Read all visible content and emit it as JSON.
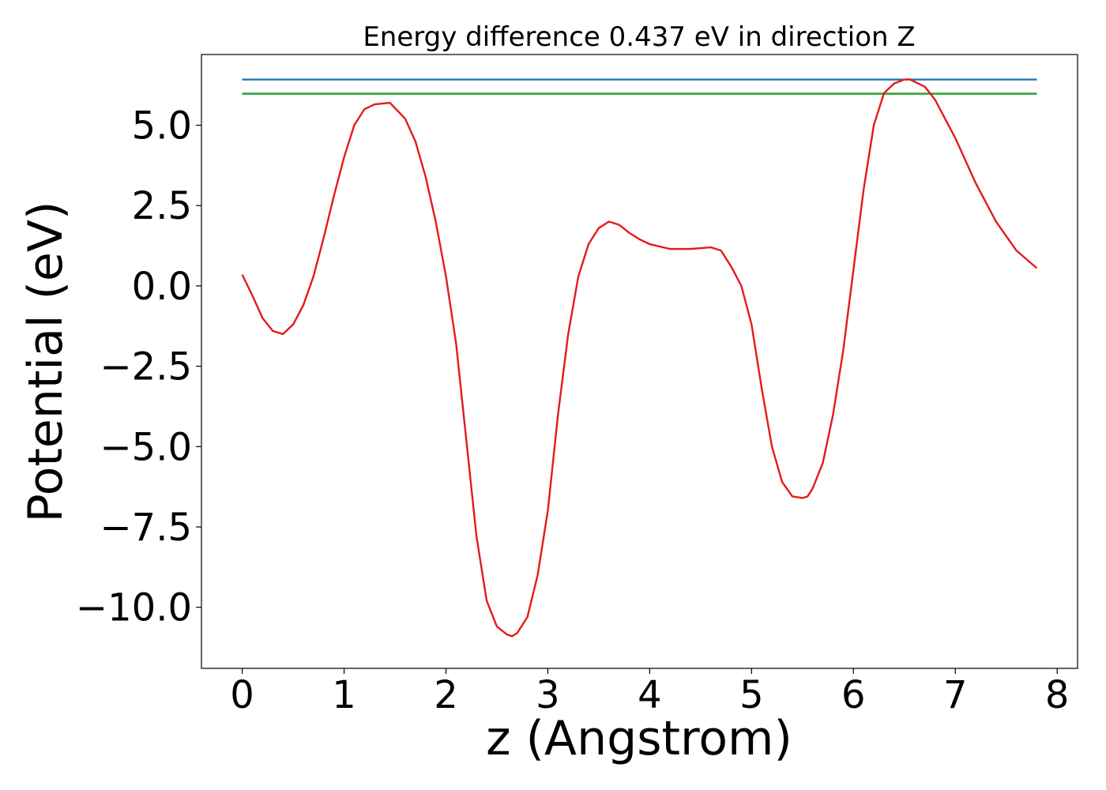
{
  "chart_data": {
    "type": "line",
    "title": "Energy difference 0.437 eV in direction Z",
    "xlabel": "z (Angstrom)",
    "ylabel": "Potential (eV)",
    "xlim": [
      -0.4,
      8.2
    ],
    "ylim": [
      -11.9,
      7.2
    ],
    "xticks": [
      0,
      1,
      2,
      3,
      4,
      5,
      6,
      7,
      8
    ],
    "yticks": [
      5.0,
      2.5,
      0.0,
      -2.5,
      -5.0,
      -7.5,
      -10.0
    ],
    "ytick_labels": [
      "5.0",
      "2.5",
      "0.0",
      "−2.5",
      "−5.0",
      "−7.5",
      "−10.0"
    ],
    "grid": false,
    "legend": "none",
    "series": [
      {
        "color": "#1f77b4",
        "x": [
          0.0,
          7.8
        ],
        "y": [
          6.42,
          6.42
        ]
      },
      {
        "color": "#2ca02c",
        "x": [
          0.0,
          7.8
        ],
        "y": [
          5.98,
          5.98
        ]
      },
      {
        "color": "#e41a1c",
        "x": [
          0.0,
          0.1,
          0.2,
          0.3,
          0.4,
          0.5,
          0.6,
          0.7,
          0.8,
          0.9,
          1.0,
          1.1,
          1.2,
          1.3,
          1.45,
          1.6,
          1.7,
          1.8,
          1.9,
          2.0,
          2.1,
          2.2,
          2.3,
          2.4,
          2.5,
          2.6,
          2.65,
          2.7,
          2.8,
          2.9,
          3.0,
          3.1,
          3.2,
          3.3,
          3.4,
          3.5,
          3.6,
          3.7,
          3.8,
          3.9,
          4.0,
          4.2,
          4.4,
          4.6,
          4.7,
          4.8,
          4.9,
          5.0,
          5.1,
          5.2,
          5.3,
          5.4,
          5.5,
          5.55,
          5.6,
          5.7,
          5.8,
          5.9,
          6.0,
          6.1,
          6.2,
          6.3,
          6.4,
          6.5,
          6.55,
          6.7,
          6.8,
          7.0,
          7.2,
          7.4,
          7.6,
          7.8
        ],
        "y": [
          0.35,
          -0.3,
          -1.0,
          -1.4,
          -1.5,
          -1.2,
          -0.6,
          0.3,
          1.5,
          2.8,
          4.0,
          5.0,
          5.5,
          5.65,
          5.7,
          5.2,
          4.5,
          3.4,
          2.0,
          0.3,
          -1.8,
          -4.8,
          -7.8,
          -9.8,
          -10.6,
          -10.85,
          -10.9,
          -10.8,
          -10.3,
          -9.0,
          -7.0,
          -4.0,
          -1.5,
          0.3,
          1.3,
          1.8,
          2.0,
          1.9,
          1.65,
          1.45,
          1.3,
          1.15,
          1.15,
          1.2,
          1.1,
          0.6,
          0.0,
          -1.2,
          -3.2,
          -5.0,
          -6.1,
          -6.55,
          -6.6,
          -6.55,
          -6.3,
          -5.5,
          -4.0,
          -2.0,
          0.5,
          3.0,
          5.0,
          6.0,
          6.3,
          6.42,
          6.43,
          6.2,
          5.8,
          4.6,
          3.2,
          2.0,
          1.1,
          0.55
        ]
      }
    ]
  }
}
